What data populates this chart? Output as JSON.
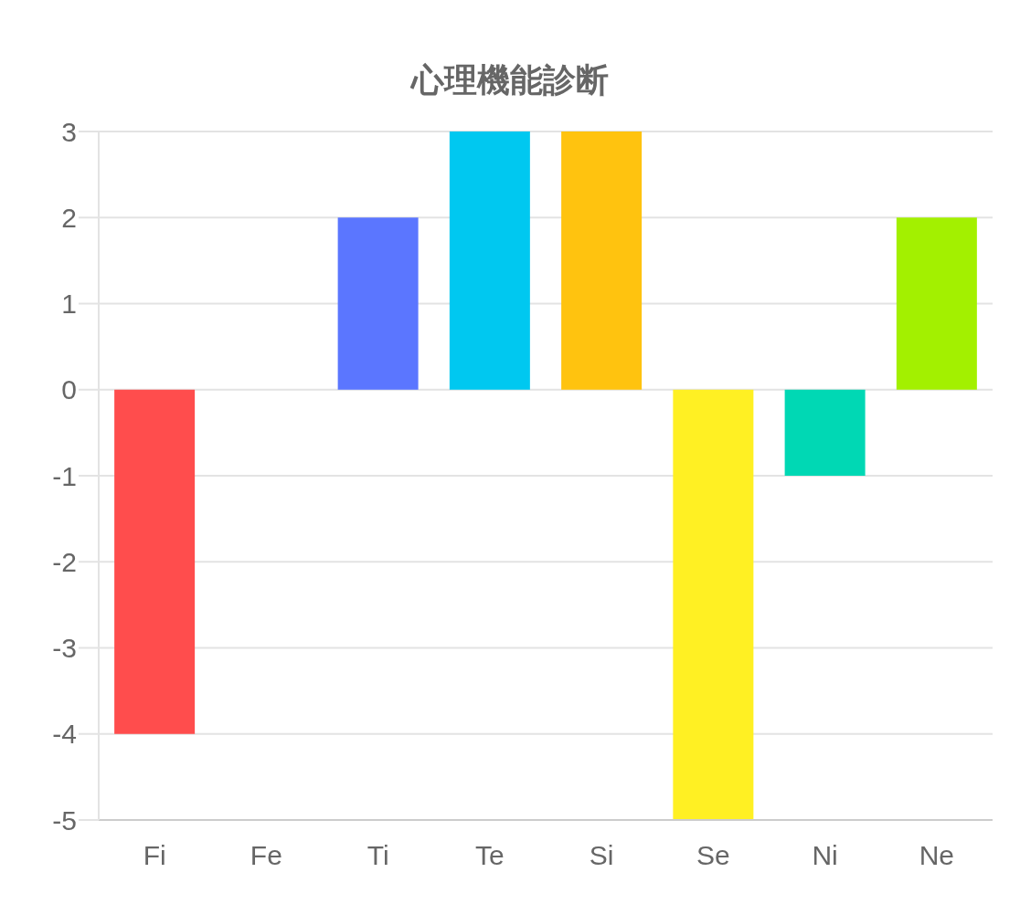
{
  "chart_data": {
    "type": "bar",
    "title": "心理機能診断",
    "categories": [
      "Fi",
      "Fe",
      "Ti",
      "Te",
      "Si",
      "Se",
      "Ni",
      "Ne"
    ],
    "values": [
      -4,
      0,
      2,
      3,
      3,
      -5,
      -1,
      2
    ],
    "colors": [
      "#ff4d4d",
      "#b36bff",
      "#5b76ff",
      "#00c8f0",
      "#ffc30f",
      "#fff023",
      "#00d8b4",
      "#a3f000"
    ],
    "ylim": [
      -5,
      3
    ],
    "yticks": [
      -5,
      -4,
      -3,
      -2,
      -1,
      0,
      1,
      2,
      3
    ],
    "grid": "y",
    "legend": false
  }
}
